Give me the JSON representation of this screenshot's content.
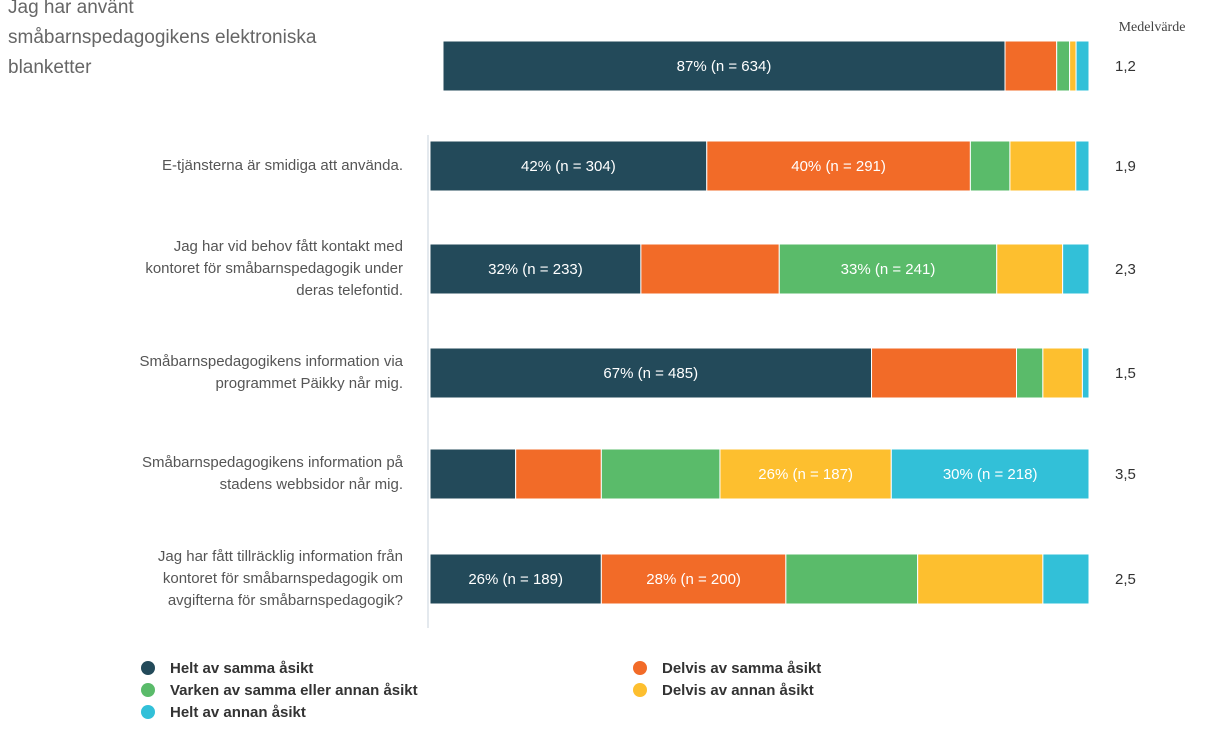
{
  "chart_data": {
    "type": "stacked_bar_horizontal",
    "categories": [
      "Jag har använt\nsmåbarnspedagogikens elektroniska\nblanketter",
      "E-tjänsterna är smidiga att använda.",
      "Jag har vid behov fått kontakt med\nkontoret för småbarnspedagogik under\nderas telefontid.",
      "Småbarnspedagogikens information via\nprogrammet Päikky når mig.",
      "Småbarnspedagogikens information på\nstadens webbsidor når mig.",
      "Jag har fått tillräcklig information från\nkontoret för småbarnspedagogik om\navgifterna för småbarnspedagogik?"
    ],
    "xlim": [
      0,
      100
    ],
    "series": [
      {
        "name": "Helt av samma åsikt",
        "color": "#234a5a",
        "values": [
          87,
          42,
          32,
          67,
          13,
          26
        ],
        "value_labels": [
          "87% (n = 634)",
          "42% (n = 304)",
          "32% (n = 233)",
          "67% (n = 485)",
          null,
          "26% (n = 189)"
        ]
      },
      {
        "name": "Delvis av samma åsikt",
        "color": "#f26b28",
        "values": [
          8,
          40,
          21,
          22,
          13,
          28
        ],
        "value_labels": [
          null,
          "40% (n = 291)",
          null,
          null,
          null,
          "28% (n = 200)"
        ]
      },
      {
        "name": "Varken av samma eller annan åsikt",
        "color": "#5abb6a",
        "values": [
          2,
          6,
          33,
          4,
          18,
          20
        ],
        "value_labels": [
          null,
          null,
          "33% (n = 241)",
          null,
          null,
          null
        ]
      },
      {
        "name": "Delvis av annan åsikt",
        "color": "#fdbf2f",
        "values": [
          1,
          10,
          10,
          6,
          26,
          19
        ],
        "value_labels": [
          null,
          null,
          null,
          null,
          "26% (n = 187)",
          null
        ]
      },
      {
        "name": "Helt av annan åsikt",
        "color": "#32c0d8",
        "values": [
          2,
          2,
          4,
          1,
          30,
          7
        ],
        "value_labels": [
          null,
          null,
          null,
          null,
          "30% (n = 218)",
          null
        ]
      }
    ],
    "mean_header": "Medelvärde",
    "mean_values": [
      "1,2",
      "1,9",
      "2,3",
      "1,5",
      "3,5",
      "2,5"
    ]
  }
}
